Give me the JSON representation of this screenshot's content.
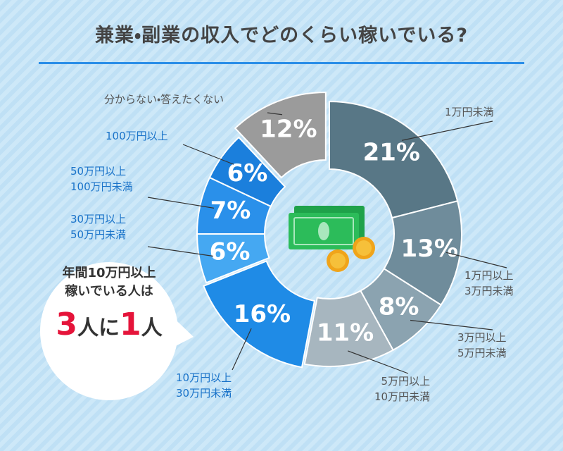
{
  "chart_data": {
    "type": "donut",
    "title": "兼業・副業の収入でどのくらい稼いでいる?",
    "categories": [
      "1万円未満",
      "1万円以上\n3万円未満",
      "3万円以上\n5万円未満",
      "5万円以上\n10万円未満",
      "10万円以上\n30万円未満",
      "30万円以上\n50万円未満",
      "50万円以上\n100万円未満",
      "100万円以上",
      "分からない・答えたくない"
    ],
    "values": [
      21,
      13,
      8,
      11,
      16,
      6,
      7,
      6,
      12
    ],
    "value_labels": [
      "21%",
      "13%",
      "8%",
      "11%",
      "16%",
      "6%",
      "7%",
      "6%",
      "12%"
    ],
    "colors": [
      "#587786",
      "#6f8c9b",
      "#8ba3b0",
      "#a7b6bf",
      "#1f8be6",
      "#45a8f2",
      "#2a90ea",
      "#1b7fdc",
      "#9b9b9b"
    ],
    "callout": {
      "line1": "年間10万円以上",
      "line2": "稼いでいる人は",
      "emphasis": [
        "3",
        "人に",
        "1",
        "人"
      ]
    }
  }
}
